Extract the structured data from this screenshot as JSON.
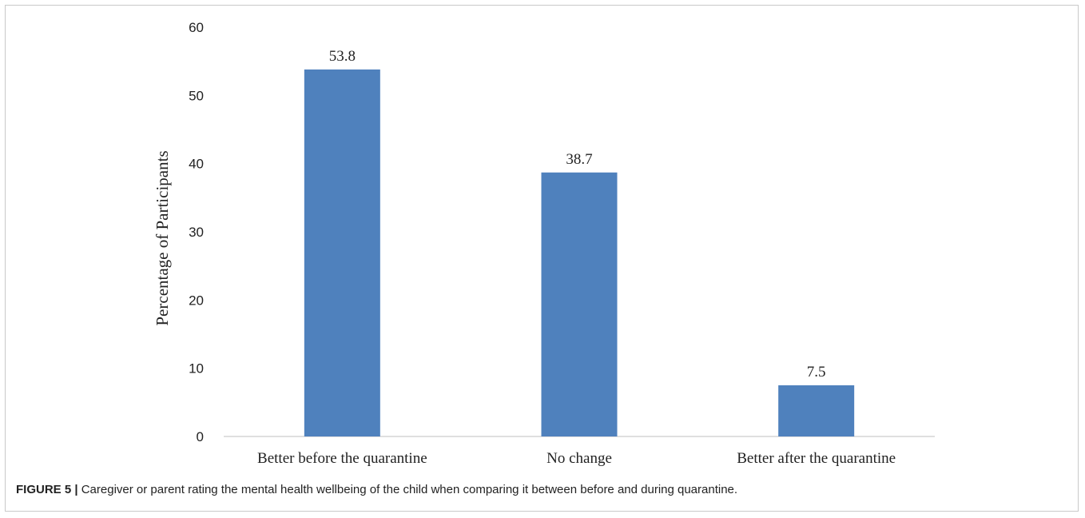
{
  "chart_data": {
    "type": "bar",
    "categories": [
      "Better before the quarantine",
      "No change",
      "Better after the quarantine"
    ],
    "values": [
      53.8,
      38.7,
      7.5
    ],
    "value_labels": [
      "53.8",
      "38.7",
      "7.5"
    ],
    "xlabel": "",
    "ylabel": "Percentage of Participants",
    "ylim": [
      0,
      60
    ],
    "yticks": [
      0,
      10,
      20,
      30,
      40,
      50,
      60
    ],
    "grid": false,
    "bar_color": "#4f81bd"
  },
  "caption": {
    "label": "FIGURE 5 |",
    "text": " Caregiver or parent rating the mental health wellbeing of the child when comparing it between before and during quarantine."
  }
}
